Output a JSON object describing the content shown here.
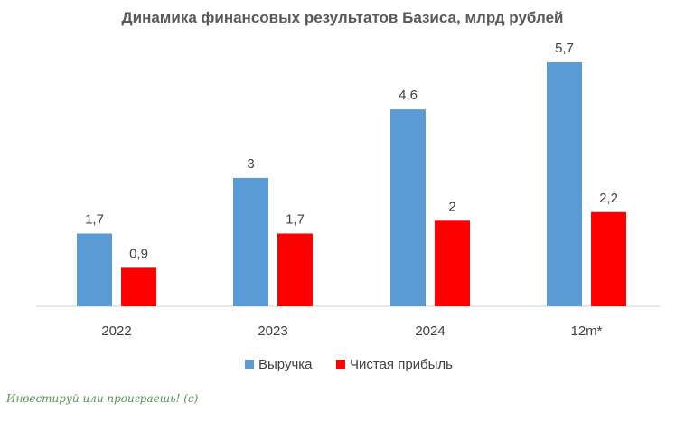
{
  "chart_data": {
    "type": "bar",
    "title": "Динамика финансовых результатов Базиса, млрд рублей",
    "categories": [
      "2022",
      "2023",
      "2024",
      "12m*"
    ],
    "series": [
      {
        "name": "Выручка",
        "color": "#5b9bd5",
        "values": [
          1.7,
          3,
          4.6,
          5.7
        ],
        "labels": [
          "1,7",
          "3",
          "4,6",
          "5,7"
        ]
      },
      {
        "name": "Чистая прибыль",
        "color": "#ff0000",
        "values": [
          0.9,
          1.7,
          2,
          2.2
        ],
        "labels": [
          "0,9",
          "1,7",
          "2",
          "2,2"
        ]
      }
    ],
    "xlabel": "",
    "ylabel": "",
    "ylim": [
      0,
      5.7
    ],
    "grid": false,
    "legend": "bottom"
  },
  "watermark": "Инвестируй или проиграешь! (с)"
}
